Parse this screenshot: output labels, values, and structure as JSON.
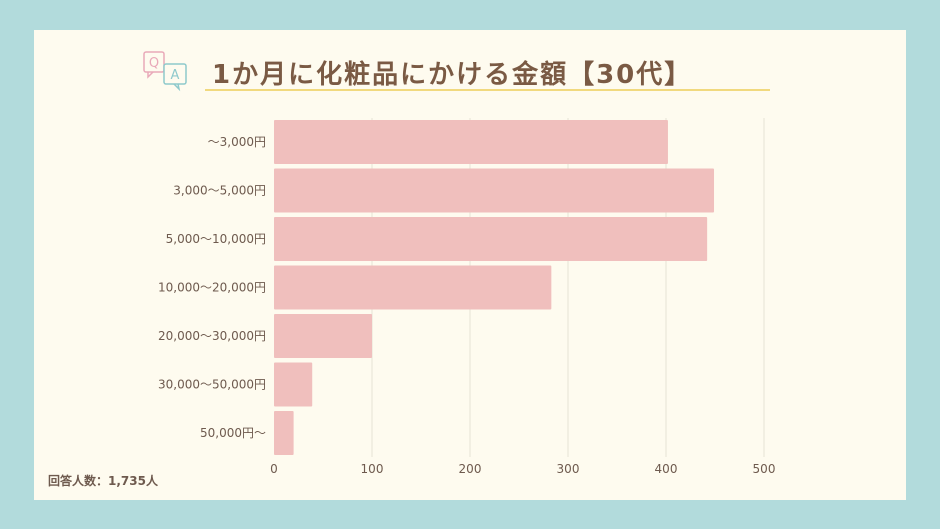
{
  "title": "1か月に化粧品にかける金額【30代】",
  "qa_icon": {
    "q": "Q",
    "a": "A",
    "q_color": "#e9a9b9",
    "a_color": "#8ec9cc"
  },
  "footer": "回答人数：1,735人",
  "colors": {
    "bar": "#f0bfbd",
    "background": "#fefbef",
    "frame": "#b2dbdc",
    "title": "#7a5a44",
    "underline": "#f1d97e"
  },
  "chart_data": {
    "type": "bar",
    "orientation": "horizontal",
    "categories": [
      "〜3,000円",
      "3,000〜5,000円",
      "5,000〜10,000円",
      "10,000〜20,000円",
      "20,000〜30,000円",
      "30,000〜50,000円",
      "50,000円〜"
    ],
    "values": [
      402,
      449,
      442,
      283,
      100,
      39,
      20
    ],
    "xlim": [
      0,
      500
    ],
    "xticks": [
      0,
      100,
      200,
      300,
      400,
      500
    ],
    "grid": true
  }
}
